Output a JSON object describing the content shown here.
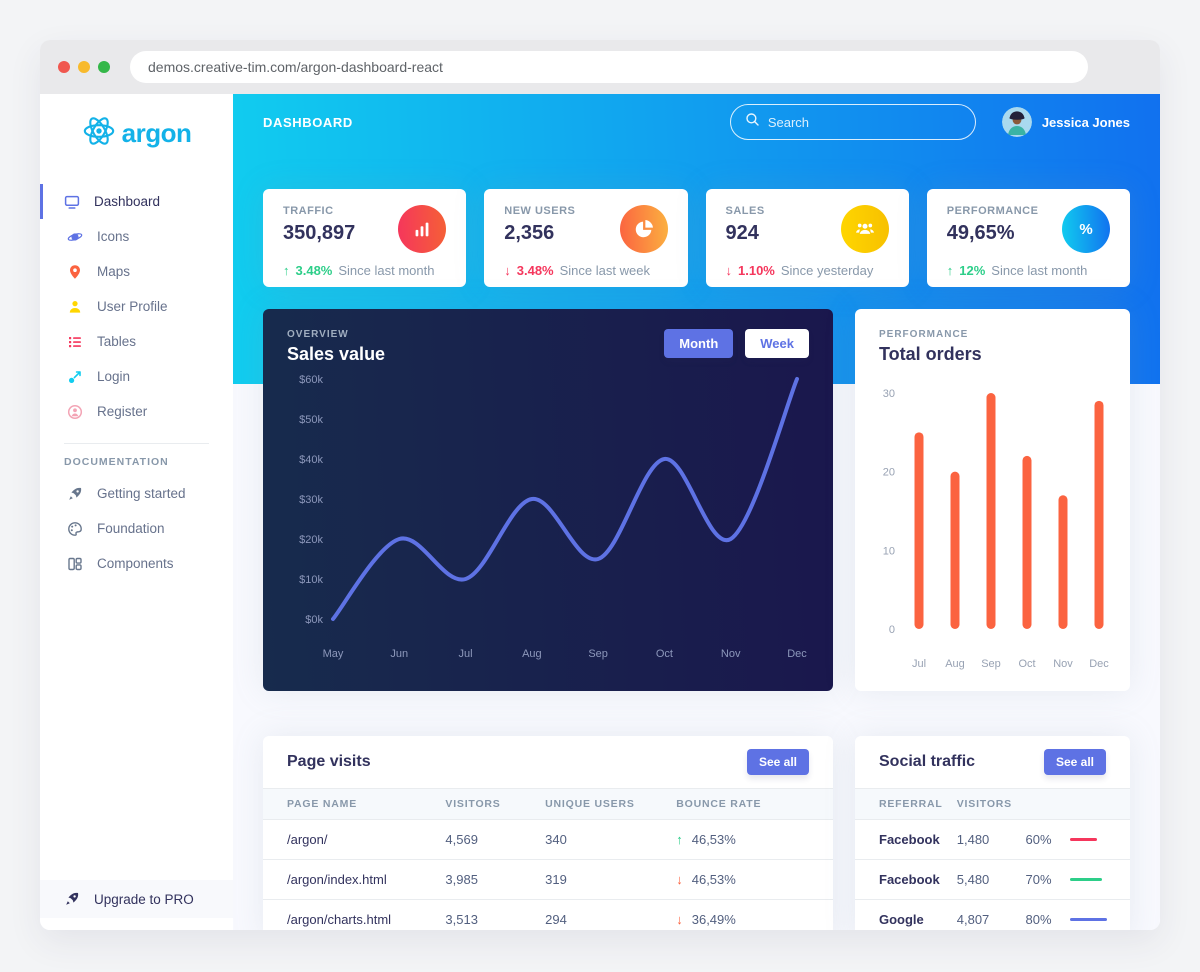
{
  "browser": {
    "url": "demos.creative-tim.com/argon-dashboard-react"
  },
  "sidebar": {
    "logo_text": "argon",
    "items": [
      {
        "label": "Dashboard",
        "icon": "monitor-icon",
        "icon_color": "#5e72e4",
        "active": true
      },
      {
        "label": "Icons",
        "icon": "planet-icon",
        "icon_color": "#5e72e4",
        "active": false
      },
      {
        "label": "Maps",
        "icon": "map-pin-icon",
        "icon_color": "#fb6340",
        "active": false
      },
      {
        "label": "User Profile",
        "icon": "user-icon",
        "icon_color": "#ffd600",
        "active": false
      },
      {
        "label": "Tables",
        "icon": "bullet-list-icon",
        "icon_color": "#f5365c",
        "active": false
      },
      {
        "label": "Login",
        "icon": "key-icon",
        "icon_color": "#11cdef",
        "active": false
      },
      {
        "label": "Register",
        "icon": "user-circle-icon",
        "icon_color": "#f3a4b5",
        "active": false
      }
    ],
    "documentation_label": "DOCUMENTATION",
    "doc_items": [
      {
        "label": "Getting started",
        "icon": "rocket-icon"
      },
      {
        "label": "Foundation",
        "icon": "palette-icon"
      },
      {
        "label": "Components",
        "icon": "components-icon"
      }
    ],
    "upgrade_label": "Upgrade to PRO"
  },
  "header": {
    "page_title": "DASHBOARD",
    "search_placeholder": "Search",
    "user_name": "Jessica Jones"
  },
  "stats": [
    {
      "label": "TRAFFIC",
      "value": "350,897",
      "delta": "3.48%",
      "dir": "up",
      "trend_color": "#2dce89",
      "period": "Since last month",
      "icon": "bar-chart-icon",
      "icon_bg": "#f5365c"
    },
    {
      "label": "NEW USERS",
      "value": "2,356",
      "delta": "3.48%",
      "dir": "down",
      "trend_color": "#f5365c",
      "period": "Since last week",
      "icon": "pie-chart-icon",
      "icon_bg": "#fb6340"
    },
    {
      "label": "SALES",
      "value": "924",
      "delta": "1.10%",
      "dir": "down",
      "trend_color": "#f5365c",
      "period": "Since yesterday",
      "icon": "users-icon",
      "icon_bg": "#ffd600"
    },
    {
      "label": "PERFORMANCE",
      "value": "49,65%",
      "delta": "12%",
      "dir": "up",
      "trend_color": "#2dce89",
      "period": "Since last month",
      "icon": "percent-icon",
      "icon_bg": "#11cdef"
    }
  ],
  "sales_card": {
    "overline": "OVERVIEW",
    "title": "Sales value",
    "month_label": "Month",
    "week_label": "Week"
  },
  "orders_card": {
    "overline": "PERFORMANCE",
    "title": "Total orders"
  },
  "chart_data": [
    {
      "id": "sales-value",
      "type": "line",
      "title": "Sales value",
      "x": [
        "May",
        "Jun",
        "Jul",
        "Aug",
        "Sep",
        "Oct",
        "Nov",
        "Dec"
      ],
      "values": [
        0,
        20,
        10,
        30,
        15,
        40,
        20,
        60
      ],
      "y_ticks": [
        "$0k",
        "$10k",
        "$20k",
        "$30k",
        "$40k",
        "$50k",
        "$60k"
      ],
      "ylim": [
        0,
        60
      ],
      "grid": false,
      "line_color": "#5e72e4",
      "legend": "none"
    },
    {
      "id": "total-orders",
      "type": "bar",
      "title": "Total orders",
      "categories": [
        "Jul",
        "Aug",
        "Sep",
        "Oct",
        "Nov",
        "Dec"
      ],
      "values": [
        25,
        20,
        30,
        22,
        17,
        29
      ],
      "y_ticks": [
        0,
        10,
        20,
        30
      ],
      "ylim": [
        0,
        30
      ],
      "grid": false,
      "bar_color": "#fb6340",
      "legend": "none"
    }
  ],
  "page_visits": {
    "title": "Page visits",
    "see_all_label": "See all",
    "columns": [
      "PAGE NAME",
      "VISITORS",
      "UNIQUE USERS",
      "BOUNCE RATE"
    ],
    "rows": [
      {
        "page": "/argon/",
        "visitors": "4,569",
        "unique": "340",
        "bounce": "46,53%",
        "dir": "up",
        "arrow_color": "#2dce89"
      },
      {
        "page": "/argon/index.html",
        "visitors": "3,985",
        "unique": "319",
        "bounce": "46,53%",
        "dir": "down",
        "arrow_color": "#fb6340"
      },
      {
        "page": "/argon/charts.html",
        "visitors": "3,513",
        "unique": "294",
        "bounce": "36,49%",
        "dir": "down",
        "arrow_color": "#fb6340"
      }
    ]
  },
  "social_traffic": {
    "title": "Social traffic",
    "see_all_label": "See all",
    "columns": [
      "REFERRAL",
      "VISITORS"
    ],
    "rows": [
      {
        "referral": "Facebook",
        "visitors": "1,480",
        "pct": "60%",
        "pct_value": 60,
        "bar_color": "#f5365c"
      },
      {
        "referral": "Facebook",
        "visitors": "5,480",
        "pct": "70%",
        "pct_value": 70,
        "bar_color": "#2dce89"
      },
      {
        "referral": "Google",
        "visitors": "4,807",
        "pct": "80%",
        "pct_value": 80,
        "bar_color": "#5e72e4"
      }
    ]
  },
  "colors": {
    "primary": "#5e72e4",
    "info": "#11cdef",
    "success": "#2dce89",
    "danger": "#f5365c",
    "warning": "#fb6340",
    "yellow": "#ffd600",
    "dark_text": "#32325d",
    "muted": "#8898aa",
    "header_gradient": [
      "#11cdef",
      "#1171ef"
    ],
    "dark_card_gradient": [
      "#172b4d",
      "#1a174d"
    ],
    "brand": "#13b2e8"
  }
}
